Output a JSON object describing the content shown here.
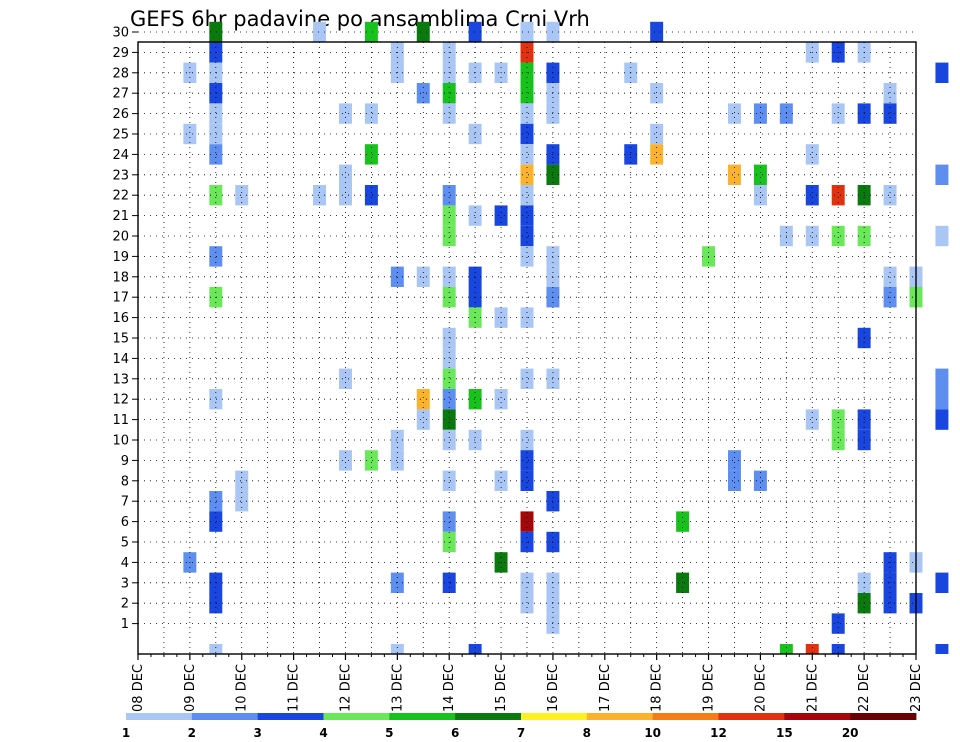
{
  "chart_data": {
    "type": "heatmap",
    "title": "GEFS 6hr padavine po ansamblima Crni Vrh",
    "xlabel": "",
    "ylabel": "",
    "y_ticks": [
      "1",
      "2",
      "3",
      "4",
      "5",
      "6",
      "7",
      "8",
      "9",
      "10",
      "11",
      "12",
      "13",
      "14",
      "15",
      "16",
      "17",
      "18",
      "19",
      "20",
      "21",
      "22",
      "23",
      "24",
      "25",
      "26",
      "27",
      "28",
      "29",
      "30"
    ],
    "x_ticks": [
      "08 DEC",
      "09 DEC",
      "10 DEC",
      "11 DEC",
      "12 DEC",
      "13 DEC",
      "14 DEC",
      "15 DEC",
      "16 DEC",
      "17 DEC",
      "18 DEC",
      "19 DEC",
      "20 DEC",
      "21 DEC",
      "22 DEC",
      "23 DEC"
    ],
    "x_range_days": [
      0,
      15
    ],
    "time_step_hours": 6,
    "members": 31,
    "grid": true,
    "colorbar": {
      "labels": [
        "1",
        "2",
        "3",
        "4",
        "5",
        "6",
        "7",
        "8",
        "10",
        "12",
        "15",
        "20"
      ],
      "colors": [
        "#a9c6f5",
        "#5e8ef0",
        "#1846de",
        "#6be85a",
        "#17c21c",
        "#0a7a0e",
        "#fff022",
        "#fbb32e",
        "#f67c16",
        "#e0320f",
        "#a5060a",
        "#6a0205"
      ]
    },
    "cells": [
      [
        30,
        1.5,
        6
      ],
      [
        30,
        3.5,
        1
      ],
      [
        30,
        4.5,
        5
      ],
      [
        30,
        5.5,
        6
      ],
      [
        30,
        6.5,
        3
      ],
      [
        30,
        7.5,
        1
      ],
      [
        30,
        8,
        1
      ],
      [
        30,
        10,
        3
      ],
      [
        30,
        18,
        3
      ],
      [
        30,
        23.5,
        8
      ],
      [
        30,
        24,
        10
      ],
      [
        30,
        24.5,
        12
      ],
      [
        30,
        25,
        8
      ],
      [
        29,
        1.5,
        3
      ],
      [
        29,
        5,
        1
      ],
      [
        29,
        6,
        1
      ],
      [
        29,
        7.5,
        10
      ],
      [
        29,
        13,
        1
      ],
      [
        29,
        13.5,
        3
      ],
      [
        29,
        14,
        1
      ],
      [
        29,
        16,
        1
      ],
      [
        29,
        18,
        3
      ],
      [
        28,
        1,
        1
      ],
      [
        28,
        1.5,
        1
      ],
      [
        28,
        5,
        1
      ],
      [
        28,
        6,
        1
      ],
      [
        28,
        6.5,
        1
      ],
      [
        28,
        7,
        1
      ],
      [
        28,
        7.5,
        5
      ],
      [
        28,
        8,
        3
      ],
      [
        28,
        9.5,
        1
      ],
      [
        28,
        15.5,
        3
      ],
      [
        28,
        16,
        1
      ],
      [
        28,
        17,
        6
      ],
      [
        28,
        18.5,
        5
      ],
      [
        28,
        19,
        8
      ],
      [
        28,
        19.5,
        5
      ],
      [
        28,
        20,
        3
      ],
      [
        28,
        20.5,
        1
      ],
      [
        28,
        22.5,
        1
      ],
      [
        28,
        23,
        3
      ],
      [
        28,
        23.5,
        5
      ],
      [
        28,
        24,
        5
      ],
      [
        28,
        24.5,
        5
      ],
      [
        28,
        25,
        1
      ],
      [
        28,
        25.5,
        1
      ],
      [
        28,
        26,
        1
      ],
      [
        27,
        1.5,
        3
      ],
      [
        27,
        5.5,
        2
      ],
      [
        27,
        6,
        5
      ],
      [
        27,
        7.5,
        5
      ],
      [
        27,
        8,
        1
      ],
      [
        27,
        10,
        1
      ],
      [
        27,
        14.5,
        1
      ],
      [
        27,
        16.5,
        1
      ],
      [
        27,
        18.5,
        8
      ],
      [
        27,
        19,
        1
      ],
      [
        27,
        25.5,
        3
      ],
      [
        26,
        1.5,
        1
      ],
      [
        26,
        4,
        1
      ],
      [
        26,
        4.5,
        1
      ],
      [
        26,
        6,
        1
      ],
      [
        26,
        7.5,
        1
      ],
      [
        26,
        8,
        1
      ],
      [
        26,
        11.5,
        1
      ],
      [
        26,
        12,
        2
      ],
      [
        26,
        12.5,
        2
      ],
      [
        26,
        13.5,
        1
      ],
      [
        26,
        14,
        3
      ],
      [
        26,
        14.5,
        3
      ],
      [
        26,
        16,
        1
      ],
      [
        26,
        16.5,
        10
      ],
      [
        26,
        17,
        2
      ],
      [
        26,
        28.5,
        2
      ],
      [
        25,
        1,
        1
      ],
      [
        25,
        1.5,
        1
      ],
      [
        25,
        6.5,
        1
      ],
      [
        25,
        7.5,
        3
      ],
      [
        25,
        10,
        1
      ],
      [
        25,
        16,
        1
      ],
      [
        25,
        17.5,
        8
      ],
      [
        25,
        18,
        1
      ],
      [
        25,
        20,
        1
      ],
      [
        25,
        20.5,
        12
      ],
      [
        25,
        21,
        2
      ],
      [
        25,
        29,
        3
      ],
      [
        24,
        1.5,
        2
      ],
      [
        24,
        4.5,
        5
      ],
      [
        24,
        7.5,
        1
      ],
      [
        24,
        8,
        3
      ],
      [
        24,
        9.5,
        3
      ],
      [
        24,
        10,
        8
      ],
      [
        24,
        13,
        1
      ],
      [
        24,
        16,
        1
      ],
      [
        24,
        17,
        1
      ],
      [
        24,
        18,
        1
      ],
      [
        24,
        20,
        2
      ],
      [
        24,
        21.5,
        8
      ],
      [
        24,
        22,
        5
      ],
      [
        24,
        22.5,
        2
      ],
      [
        24,
        23.5,
        1
      ],
      [
        24,
        24,
        1
      ],
      [
        24,
        24.5,
        5
      ],
      [
        24,
        25,
        3
      ],
      [
        23,
        4,
        1
      ],
      [
        23,
        7.5,
        8
      ],
      [
        23,
        8,
        6
      ],
      [
        23,
        11.5,
        8
      ],
      [
        23,
        12,
        5
      ],
      [
        23,
        15.5,
        2
      ],
      [
        23,
        17,
        6
      ],
      [
        23,
        17.5,
        6
      ],
      [
        23,
        18,
        1
      ],
      [
        23,
        24.5,
        8
      ],
      [
        23,
        25,
        1
      ],
      [
        23,
        27,
        1
      ],
      [
        23,
        27.5,
        6
      ],
      [
        23,
        29,
        6
      ],
      [
        23,
        29.5,
        3
      ],
      [
        23,
        30,
        1
      ],
      [
        22,
        1.5,
        4
      ],
      [
        22,
        2,
        1
      ],
      [
        22,
        3.5,
        1
      ],
      [
        22,
        4,
        1
      ],
      [
        22,
        4.5,
        3
      ],
      [
        22,
        6,
        2
      ],
      [
        22,
        7.5,
        1
      ],
      [
        22,
        12,
        1
      ],
      [
        22,
        13,
        3
      ],
      [
        22,
        13.5,
        10
      ],
      [
        22,
        14,
        6
      ],
      [
        22,
        14.5,
        1
      ],
      [
        22,
        17,
        2
      ],
      [
        21,
        6,
        4
      ],
      [
        21,
        6.5,
        1
      ],
      [
        21,
        7,
        3
      ],
      [
        21,
        7.5,
        3
      ],
      [
        21,
        16.5,
        2
      ],
      [
        21,
        17,
        4
      ],
      [
        21,
        17.5,
        2
      ],
      [
        20,
        6,
        4
      ],
      [
        20,
        7.5,
        3
      ],
      [
        20,
        12.5,
        1
      ],
      [
        20,
        13,
        1
      ],
      [
        20,
        13.5,
        4
      ],
      [
        20,
        14,
        4
      ],
      [
        20,
        15.5,
        1
      ],
      [
        20,
        16,
        2
      ],
      [
        20,
        23,
        1
      ],
      [
        20,
        26,
        8
      ],
      [
        20,
        26.5,
        12
      ],
      [
        19,
        1.5,
        2
      ],
      [
        19,
        7.5,
        1
      ],
      [
        19,
        8,
        1
      ],
      [
        19,
        11,
        4
      ],
      [
        19,
        27.5,
        2
      ],
      [
        19,
        28,
        3
      ],
      [
        18,
        5,
        2
      ],
      [
        18,
        5.5,
        1
      ],
      [
        18,
        6,
        1
      ],
      [
        18,
        6.5,
        3
      ],
      [
        18,
        8,
        1
      ],
      [
        18,
        14.5,
        1
      ],
      [
        18,
        15,
        1
      ],
      [
        18,
        17,
        2
      ],
      [
        18,
        17.5,
        2
      ],
      [
        18,
        19.5,
        1
      ],
      [
        18,
        20,
        8
      ],
      [
        18,
        20.5,
        2
      ],
      [
        18,
        23,
        1
      ],
      [
        17,
        1.5,
        4
      ],
      [
        17,
        6,
        4
      ],
      [
        17,
        6.5,
        3
      ],
      [
        17,
        8,
        2
      ],
      [
        17,
        14.5,
        2
      ],
      [
        17,
        15,
        4
      ],
      [
        17,
        29,
        10
      ],
      [
        17,
        29.5,
        8
      ],
      [
        16,
        6.5,
        4
      ],
      [
        16,
        7,
        1
      ],
      [
        16,
        7.5,
        1
      ],
      [
        16,
        18,
        2
      ],
      [
        16,
        18.5,
        1
      ],
      [
        16,
        20.5,
        8
      ],
      [
        16,
        21,
        2
      ],
      [
        15,
        6,
        1
      ],
      [
        15,
        14,
        3
      ],
      [
        14,
        6,
        1
      ],
      [
        13,
        4,
        1
      ],
      [
        13,
        6,
        4
      ],
      [
        13,
        7.5,
        1
      ],
      [
        13,
        8,
        1
      ],
      [
        13,
        15.5,
        2
      ],
      [
        13,
        16,
        1
      ],
      [
        13,
        18,
        2
      ],
      [
        13,
        19,
        1
      ],
      [
        13,
        19.5,
        2
      ],
      [
        13,
        20,
        1
      ],
      [
        13,
        20.5,
        1
      ],
      [
        13,
        21,
        1
      ],
      [
        13,
        22,
        1
      ],
      [
        13,
        22.5,
        3
      ],
      [
        13,
        26,
        2
      ],
      [
        13,
        26.5,
        2
      ],
      [
        13,
        27,
        2
      ],
      [
        13,
        27.5,
        2
      ],
      [
        13,
        28,
        2
      ],
      [
        13,
        28.5,
        2
      ],
      [
        13,
        29.5,
        1
      ],
      [
        12,
        1.5,
        1
      ],
      [
        12,
        5.5,
        8
      ],
      [
        12,
        6,
        2
      ],
      [
        12,
        6.5,
        5
      ],
      [
        12,
        7,
        1
      ],
      [
        12,
        15.5,
        2
      ],
      [
        12,
        16,
        2
      ],
      [
        12,
        17,
        2
      ],
      [
        12,
        17.5,
        8
      ],
      [
        12,
        18,
        1
      ],
      [
        12,
        26.5,
        5
      ],
      [
        12,
        27,
        10
      ],
      [
        11,
        5.5,
        1
      ],
      [
        11,
        6,
        6
      ],
      [
        11,
        13,
        1
      ],
      [
        11,
        13.5,
        4
      ],
      [
        11,
        14,
        3
      ],
      [
        11,
        15.5,
        3
      ],
      [
        11,
        20,
        5
      ],
      [
        11,
        20.5,
        3
      ],
      [
        11,
        21,
        2
      ],
      [
        11,
        21.5,
        1
      ],
      [
        10,
        5,
        1
      ],
      [
        10,
        6,
        1
      ],
      [
        10,
        6.5,
        1
      ],
      [
        10,
        7.5,
        1
      ],
      [
        10,
        13.5,
        4
      ],
      [
        10,
        14,
        3
      ],
      [
        10,
        17.5,
        2
      ],
      [
        10,
        18,
        1
      ],
      [
        10,
        20.5,
        3
      ],
      [
        10,
        28,
        1
      ],
      [
        9,
        4,
        1
      ],
      [
        9,
        4.5,
        4
      ],
      [
        9,
        5,
        1
      ],
      [
        9,
        7.5,
        3
      ],
      [
        9,
        11.5,
        2
      ],
      [
        9,
        17.5,
        2
      ],
      [
        9,
        18,
        2
      ],
      [
        9,
        20,
        4
      ],
      [
        9,
        20.5,
        3
      ],
      [
        9,
        21,
        3
      ],
      [
        9,
        28,
        2
      ],
      [
        9,
        28.5,
        3
      ],
      [
        9,
        29,
        1
      ],
      [
        9,
        29.5,
        2
      ],
      [
        9,
        30,
        2
      ],
      [
        8,
        2,
        1
      ],
      [
        8,
        6,
        1
      ],
      [
        8,
        7,
        1
      ],
      [
        8,
        7.5,
        3
      ],
      [
        8,
        11.5,
        2
      ],
      [
        8,
        12,
        2
      ],
      [
        8,
        16,
        4
      ],
      [
        8,
        17,
        3
      ],
      [
        8,
        17.5,
        3
      ],
      [
        8,
        18,
        4
      ],
      [
        8,
        21,
        1
      ],
      [
        8,
        21.5,
        1
      ],
      [
        7,
        1.5,
        2
      ],
      [
        7,
        2,
        1
      ],
      [
        7,
        8,
        3
      ],
      [
        7,
        17,
        2
      ],
      [
        7,
        17.5,
        1
      ],
      [
        7,
        21.5,
        5
      ],
      [
        7,
        22,
        8
      ],
      [
        7,
        22.5,
        6
      ],
      [
        7,
        26.5,
        1
      ],
      [
        7,
        27.5,
        1
      ],
      [
        7,
        28,
        1
      ],
      [
        7,
        28.5,
        1
      ],
      [
        7,
        29.5,
        4
      ],
      [
        6,
        1.5,
        3
      ],
      [
        6,
        6,
        2
      ],
      [
        6,
        7.5,
        11
      ],
      [
        6,
        10.5,
        5
      ],
      [
        6,
        16.5,
        1
      ],
      [
        6,
        21,
        1
      ],
      [
        5,
        6,
        4
      ],
      [
        5,
        7.5,
        3
      ],
      [
        5,
        8,
        3
      ],
      [
        5,
        26.5,
        1
      ],
      [
        4,
        1,
        2
      ],
      [
        4,
        7,
        6
      ],
      [
        4,
        14.5,
        3
      ],
      [
        4,
        15,
        1
      ],
      [
        4,
        16.5,
        3
      ],
      [
        4,
        17,
        2
      ],
      [
        4,
        17.5,
        1
      ],
      [
        4,
        23.5,
        1
      ],
      [
        3,
        1.5,
        3
      ],
      [
        3,
        5,
        2
      ],
      [
        3,
        6,
        3
      ],
      [
        3,
        7.5,
        1
      ],
      [
        3,
        8,
        1
      ],
      [
        3,
        10.5,
        6
      ],
      [
        3,
        14,
        1
      ],
      [
        3,
        14.5,
        3
      ],
      [
        3,
        15.5,
        3
      ],
      [
        3,
        16,
        12
      ],
      [
        3,
        16.5,
        1
      ],
      [
        3,
        19.5,
        6
      ],
      [
        3,
        21.5,
        3
      ],
      [
        3,
        22,
        2
      ],
      [
        3,
        22.5,
        5
      ],
      [
        3,
        23,
        3
      ],
      [
        3,
        23.5,
        1
      ],
      [
        3,
        25.5,
        1
      ],
      [
        3,
        26.5,
        1
      ],
      [
        2,
        1.5,
        3
      ],
      [
        2,
        7.5,
        1
      ],
      [
        2,
        8,
        1
      ],
      [
        2,
        14,
        6
      ],
      [
        2,
        14.5,
        3
      ],
      [
        2,
        15,
        3
      ],
      [
        2,
        23,
        1
      ],
      [
        1,
        8,
        1
      ],
      [
        1,
        13.5,
        3
      ],
      [
        0,
        1.5,
        1
      ],
      [
        0,
        5,
        1
      ],
      [
        0,
        6.5,
        3
      ],
      [
        0,
        12.5,
        5
      ],
      [
        0,
        13,
        10
      ],
      [
        0,
        13.5,
        3
      ],
      [
        0,
        15.5,
        3
      ],
      [
        0,
        16,
        4
      ],
      [
        0,
        16.5,
        10
      ],
      [
        0,
        17,
        8
      ],
      [
        0,
        17.5,
        10
      ],
      [
        0,
        22,
        3
      ],
      [
        0,
        22.5,
        3
      ],
      [
        0,
        23,
        3
      ],
      [
        0,
        23.5,
        5
      ],
      [
        0,
        24,
        1
      ]
    ]
  }
}
